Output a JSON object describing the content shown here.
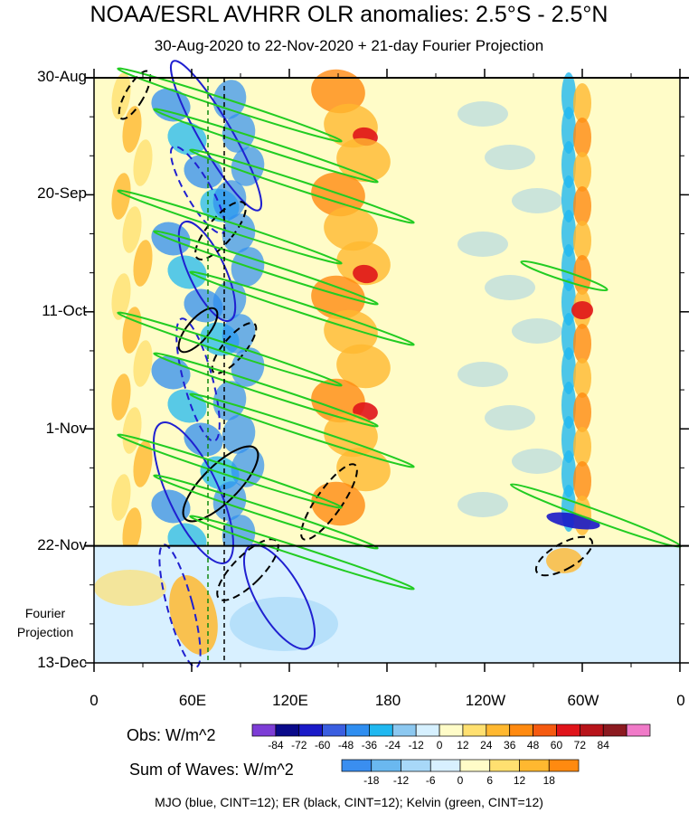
{
  "chart_data": {
    "type": "heatmap",
    "title": "NOAA/ESRL AVHRR OLR anomalies: 2.5°S - 2.5°N",
    "subtitle": "30-Aug-2020 to 22-Nov-2020 + 21-day Fourier Projection",
    "x_tick_labels": [
      "0",
      "60E",
      "120E",
      "180",
      "120W",
      "60W",
      "0"
    ],
    "x_ticks_lon": [
      0,
      60,
      120,
      180,
      240,
      300,
      360
    ],
    "y_tick_labels": [
      "30-Aug",
      "20-Sep",
      "11-Oct",
      "1-Nov",
      "22-Nov",
      "13-Dec"
    ],
    "y_ticks_day": [
      0,
      21,
      42,
      63,
      84,
      105
    ],
    "projection_start_day": 84,
    "projection_label": [
      "Fourier",
      "Projection"
    ],
    "obs_colorbar": {
      "label": "Obs: W/m^2",
      "levels": [
        "-84",
        "-72",
        "-60",
        "-48",
        "-36",
        "-24",
        "-12",
        "0",
        "12",
        "24",
        "36",
        "48",
        "60",
        "72",
        "84"
      ],
      "colors": [
        "#7d3dd6",
        "#0a0a8a",
        "#1a1ac8",
        "#3a5ee0",
        "#2f8ef0",
        "#20b8f0",
        "#8cc8f0",
        "#d6f0ff",
        "#fffcc8",
        "#ffe070",
        "#ffb830",
        "#ff8a10",
        "#f55a10",
        "#e0141a",
        "#b8141a",
        "#8c1a20",
        "#f07ac8"
      ]
    },
    "waves_colorbar": {
      "label": "Sum of Waves: W/m^2",
      "levels": [
        "-18",
        "-12",
        "-6",
        "0",
        "6",
        "12",
        "18"
      ],
      "colors": [
        "#3a8ef0",
        "#6ab8f0",
        "#a8d8f8",
        "#d8f0ff",
        "#fffcc8",
        "#ffe070",
        "#ffb830",
        "#ff8a10"
      ]
    },
    "contours": [
      {
        "wave": "MJO",
        "color": "#2020d0"
      },
      {
        "wave": "ER",
        "color": "#000000"
      },
      {
        "wave": "Kelvin",
        "color": "#22cc22"
      }
    ],
    "footer": "MJO (blue, CINT=12); ER (black, CINT=12); Kelvin (green, CINT=12)",
    "reference_lines_lon": [
      70,
      80
    ]
  }
}
